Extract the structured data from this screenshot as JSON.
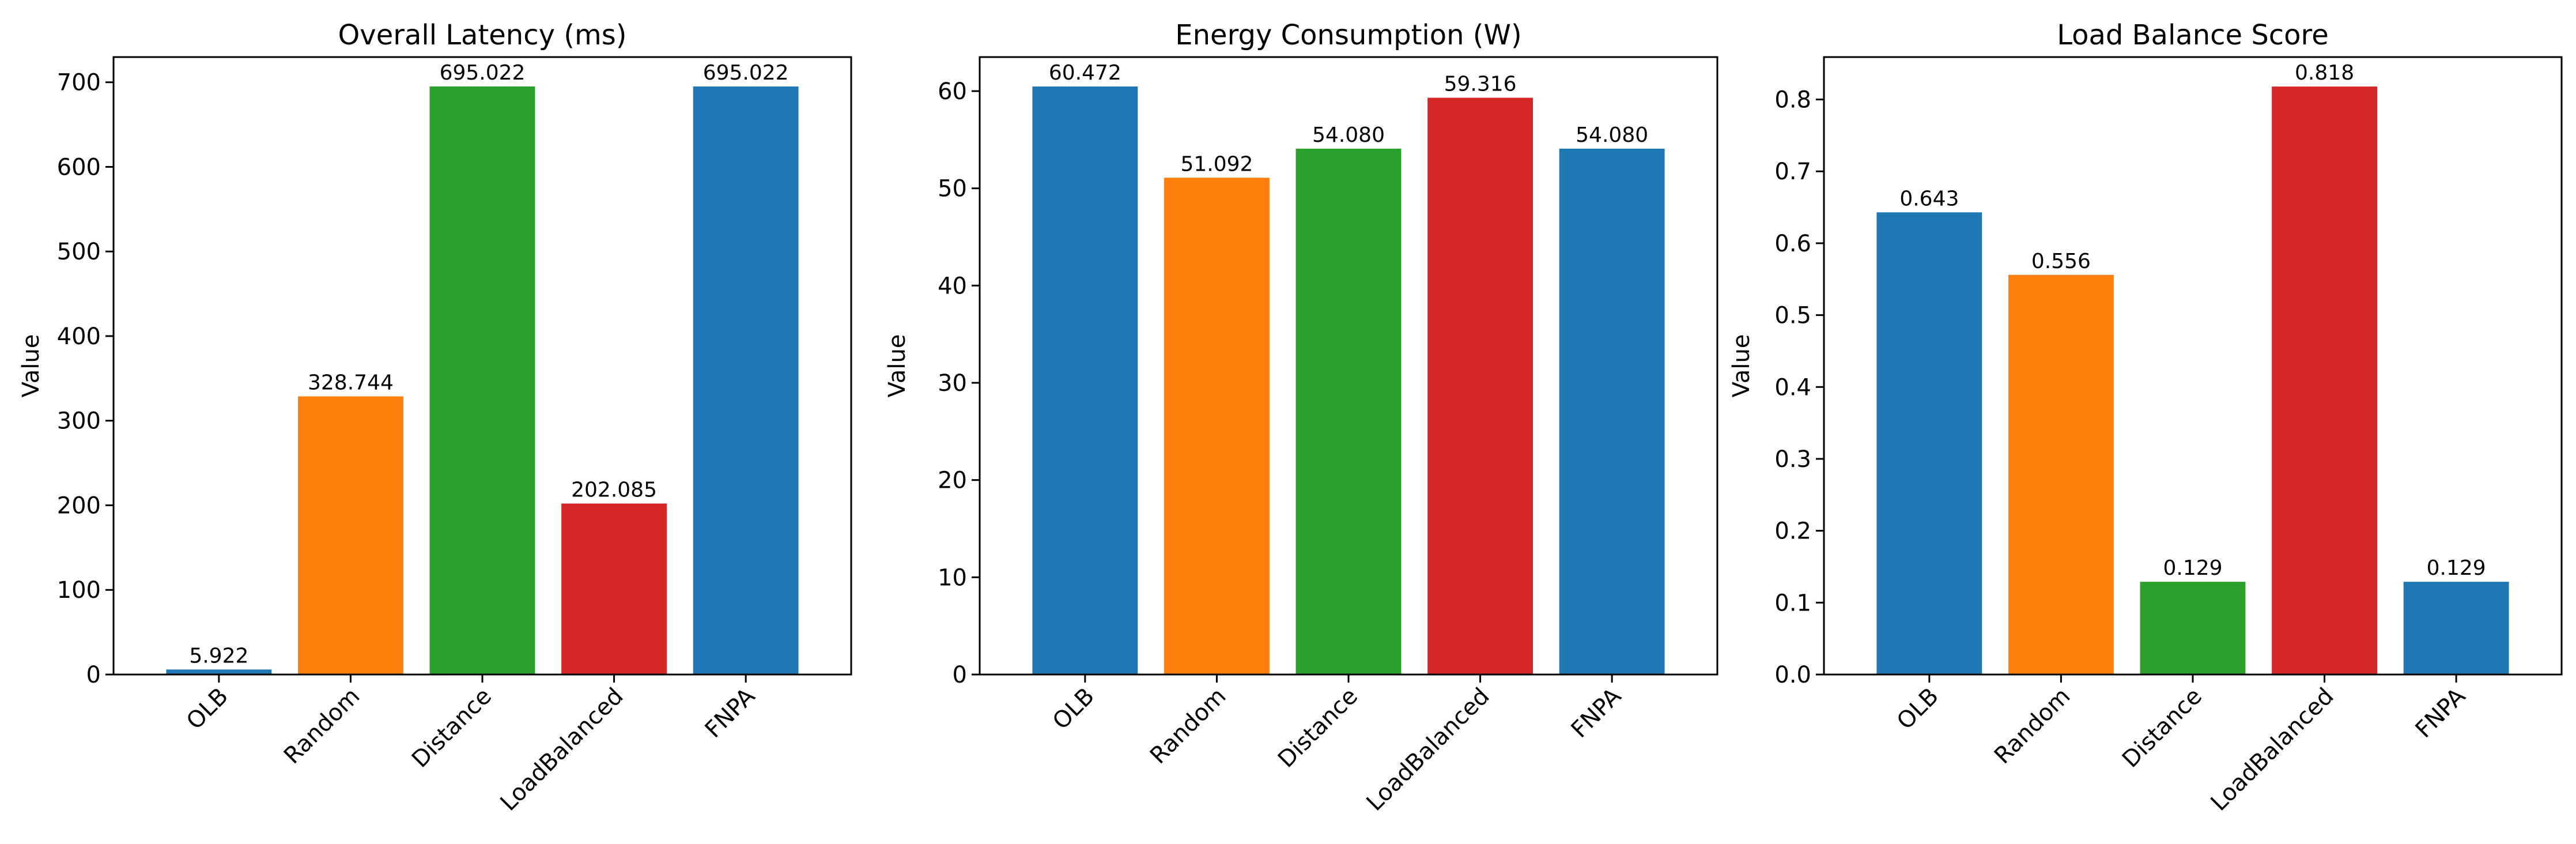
{
  "colors": {
    "blue": "#1f77b4",
    "orange": "#ff7f0e",
    "green": "#2ca02c",
    "red": "#d62728"
  },
  "chart_data": [
    {
      "type": "bar",
      "title": "Overall Latency (ms)",
      "ylabel": "Value",
      "xlabel": "",
      "categories": [
        "OLB",
        "Random",
        "Distance",
        "LoadBalanced",
        "FNPA"
      ],
      "values": [
        5.922,
        328.744,
        695.022,
        202.085,
        695.022
      ],
      "value_labels": [
        "5.922",
        "328.744",
        "695.022",
        "202.085",
        "695.022"
      ],
      "bar_colors": [
        "#1f77b4",
        "#ff7f0e",
        "#2ca02c",
        "#d62728",
        "#1f77b4"
      ],
      "ylim": [
        0,
        729.77
      ],
      "yticks": [
        0,
        100,
        200,
        300,
        400,
        500,
        600,
        700
      ],
      "ytick_labels": [
        "0",
        "100",
        "200",
        "300",
        "400",
        "500",
        "600",
        "700"
      ],
      "grid": false,
      "legend": "none"
    },
    {
      "type": "bar",
      "title": "Energy Consumption (W)",
      "ylabel": "Value",
      "xlabel": "",
      "categories": [
        "OLB",
        "Random",
        "Distance",
        "LoadBalanced",
        "FNPA"
      ],
      "values": [
        60.472,
        51.092,
        54.08,
        59.316,
        54.08
      ],
      "value_labels": [
        "60.472",
        "51.092",
        "54.080",
        "59.316",
        "54.080"
      ],
      "bar_colors": [
        "#1f77b4",
        "#ff7f0e",
        "#2ca02c",
        "#d62728",
        "#1f77b4"
      ],
      "ylim": [
        0,
        63.5
      ],
      "yticks": [
        0,
        10,
        20,
        30,
        40,
        50,
        60
      ],
      "ytick_labels": [
        "0",
        "10",
        "20",
        "30",
        "40",
        "50",
        "60"
      ],
      "grid": false,
      "legend": "none"
    },
    {
      "type": "bar",
      "title": "Load Balance Score",
      "ylabel": "Value",
      "xlabel": "",
      "categories": [
        "OLB",
        "Random",
        "Distance",
        "LoadBalanced",
        "FNPA"
      ],
      "values": [
        0.643,
        0.556,
        0.129,
        0.818,
        0.129
      ],
      "value_labels": [
        "0.643",
        "0.556",
        "0.129",
        "0.818",
        "0.129"
      ],
      "bar_colors": [
        "#1f77b4",
        "#ff7f0e",
        "#2ca02c",
        "#d62728",
        "#1f77b4"
      ],
      "ylim": [
        0,
        0.859
      ],
      "yticks": [
        0,
        0.1,
        0.2,
        0.3,
        0.4,
        0.5,
        0.6,
        0.7,
        0.8
      ],
      "ytick_labels": [
        "0.0",
        "0.1",
        "0.2",
        "0.3",
        "0.4",
        "0.5",
        "0.6",
        "0.7",
        "0.8"
      ],
      "grid": false,
      "legend": "none"
    }
  ]
}
